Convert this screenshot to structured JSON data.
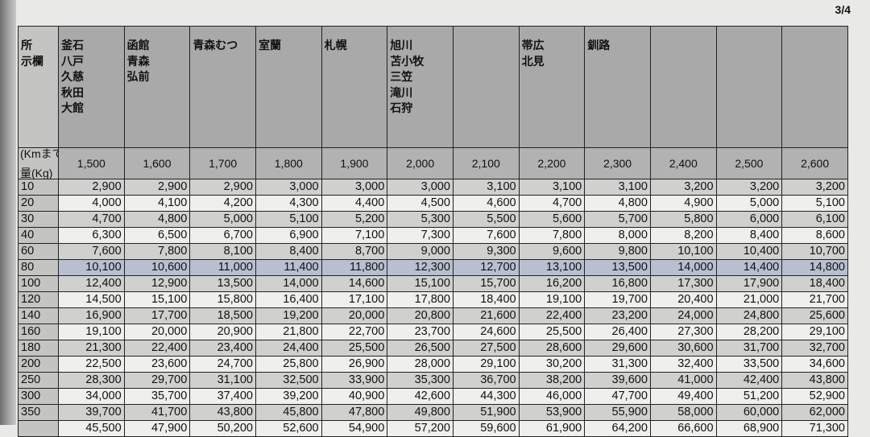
{
  "page_number": "3/4",
  "corner_label_top": "(Kmまで)",
  "corner_label_bottom": "量(Kg)",
  "header_first": "所\n示欄",
  "destinations": [
    "釜石\n八戸\n久慈\n秋田\n大館",
    "函館\n青森\n弘前",
    "青森むつ",
    "室蘭",
    "札幌",
    "旭川\n苫小牧\n三笠\n滝川\n石狩",
    "",
    "帯広\n北見",
    "釧路",
    "",
    "",
    ""
  ],
  "distances": [
    "1,500",
    "1,600",
    "1,700",
    "1,800",
    "1,900",
    "2,000",
    "2,100",
    "2,200",
    "2,300",
    "2,400",
    "2,500",
    "2,600"
  ],
  "highlighted_row_weight": "80",
  "rows": [
    {
      "weight": "10",
      "values": [
        "2,900",
        "2,900",
        "2,900",
        "3,000",
        "3,000",
        "3,000",
        "3,100",
        "3,100",
        "3,100",
        "3,200",
        "3,200",
        "3,200"
      ]
    },
    {
      "weight": "20",
      "values": [
        "4,000",
        "4,100",
        "4,200",
        "4,300",
        "4,400",
        "4,500",
        "4,600",
        "4,700",
        "4,800",
        "4,900",
        "5,000",
        "5,100"
      ]
    },
    {
      "weight": "30",
      "values": [
        "4,700",
        "4,800",
        "5,000",
        "5,100",
        "5,200",
        "5,300",
        "5,500",
        "5,600",
        "5,700",
        "5,800",
        "6,000",
        "6,100"
      ]
    },
    {
      "weight": "40",
      "values": [
        "6,300",
        "6,500",
        "6,700",
        "6,900",
        "7,100",
        "7,300",
        "7,600",
        "7,800",
        "8,000",
        "8,200",
        "8,400",
        "8,600"
      ]
    },
    {
      "weight": "60",
      "values": [
        "7,600",
        "7,800",
        "8,100",
        "8,400",
        "8,700",
        "9,000",
        "9,300",
        "9,600",
        "9,800",
        "10,100",
        "10,400",
        "10,700"
      ]
    },
    {
      "weight": "80",
      "values": [
        "10,100",
        "10,600",
        "11,000",
        "11,400",
        "11,800",
        "12,300",
        "12,700",
        "13,100",
        "13,500",
        "14,000",
        "14,400",
        "14,800"
      ]
    },
    {
      "weight": "100",
      "values": [
        "12,400",
        "12,900",
        "13,500",
        "14,000",
        "14,600",
        "15,100",
        "15,700",
        "16,200",
        "16,800",
        "17,300",
        "17,900",
        "18,400"
      ]
    },
    {
      "weight": "120",
      "values": [
        "14,500",
        "15,100",
        "15,800",
        "16,400",
        "17,100",
        "17,800",
        "18,400",
        "19,100",
        "19,700",
        "20,400",
        "21,000",
        "21,700"
      ]
    },
    {
      "weight": "140",
      "values": [
        "16,900",
        "17,700",
        "18,500",
        "19,200",
        "20,000",
        "20,800",
        "21,600",
        "22,400",
        "23,200",
        "24,000",
        "24,800",
        "25,600"
      ]
    },
    {
      "weight": "160",
      "values": [
        "19,100",
        "20,000",
        "20,900",
        "21,800",
        "22,700",
        "23,700",
        "24,600",
        "25,500",
        "26,400",
        "27,300",
        "28,200",
        "29,100"
      ]
    },
    {
      "weight": "180",
      "values": [
        "21,300",
        "22,400",
        "23,400",
        "24,400",
        "25,500",
        "26,500",
        "27,500",
        "28,600",
        "29,600",
        "30,600",
        "31,700",
        "32,700"
      ]
    },
    {
      "weight": "200",
      "values": [
        "22,500",
        "23,600",
        "24,700",
        "25,800",
        "26,900",
        "28,000",
        "29,100",
        "30,200",
        "31,300",
        "32,400",
        "33,500",
        "34,600"
      ]
    },
    {
      "weight": "250",
      "values": [
        "28,300",
        "29,700",
        "31,100",
        "32,500",
        "33,900",
        "35,300",
        "36,700",
        "38,200",
        "39,600",
        "41,000",
        "42,400",
        "43,800"
      ]
    },
    {
      "weight": "300",
      "values": [
        "34,000",
        "35,700",
        "37,400",
        "39,200",
        "40,900",
        "42,600",
        "44,300",
        "46,000",
        "47,700",
        "49,400",
        "51,200",
        "52,900"
      ]
    },
    {
      "weight": "350",
      "values": [
        "39,700",
        "41,700",
        "43,800",
        "45,800",
        "47,800",
        "49,800",
        "51,900",
        "53,900",
        "55,900",
        "58,000",
        "60,000",
        "62,000"
      ]
    },
    {
      "weight": "",
      "values": [
        "45,500",
        "47,900",
        "50,200",
        "52,600",
        "54,900",
        "57,200",
        "59,600",
        "61,900",
        "64,200",
        "66,600",
        "68,900",
        "71,300"
      ]
    }
  ]
}
